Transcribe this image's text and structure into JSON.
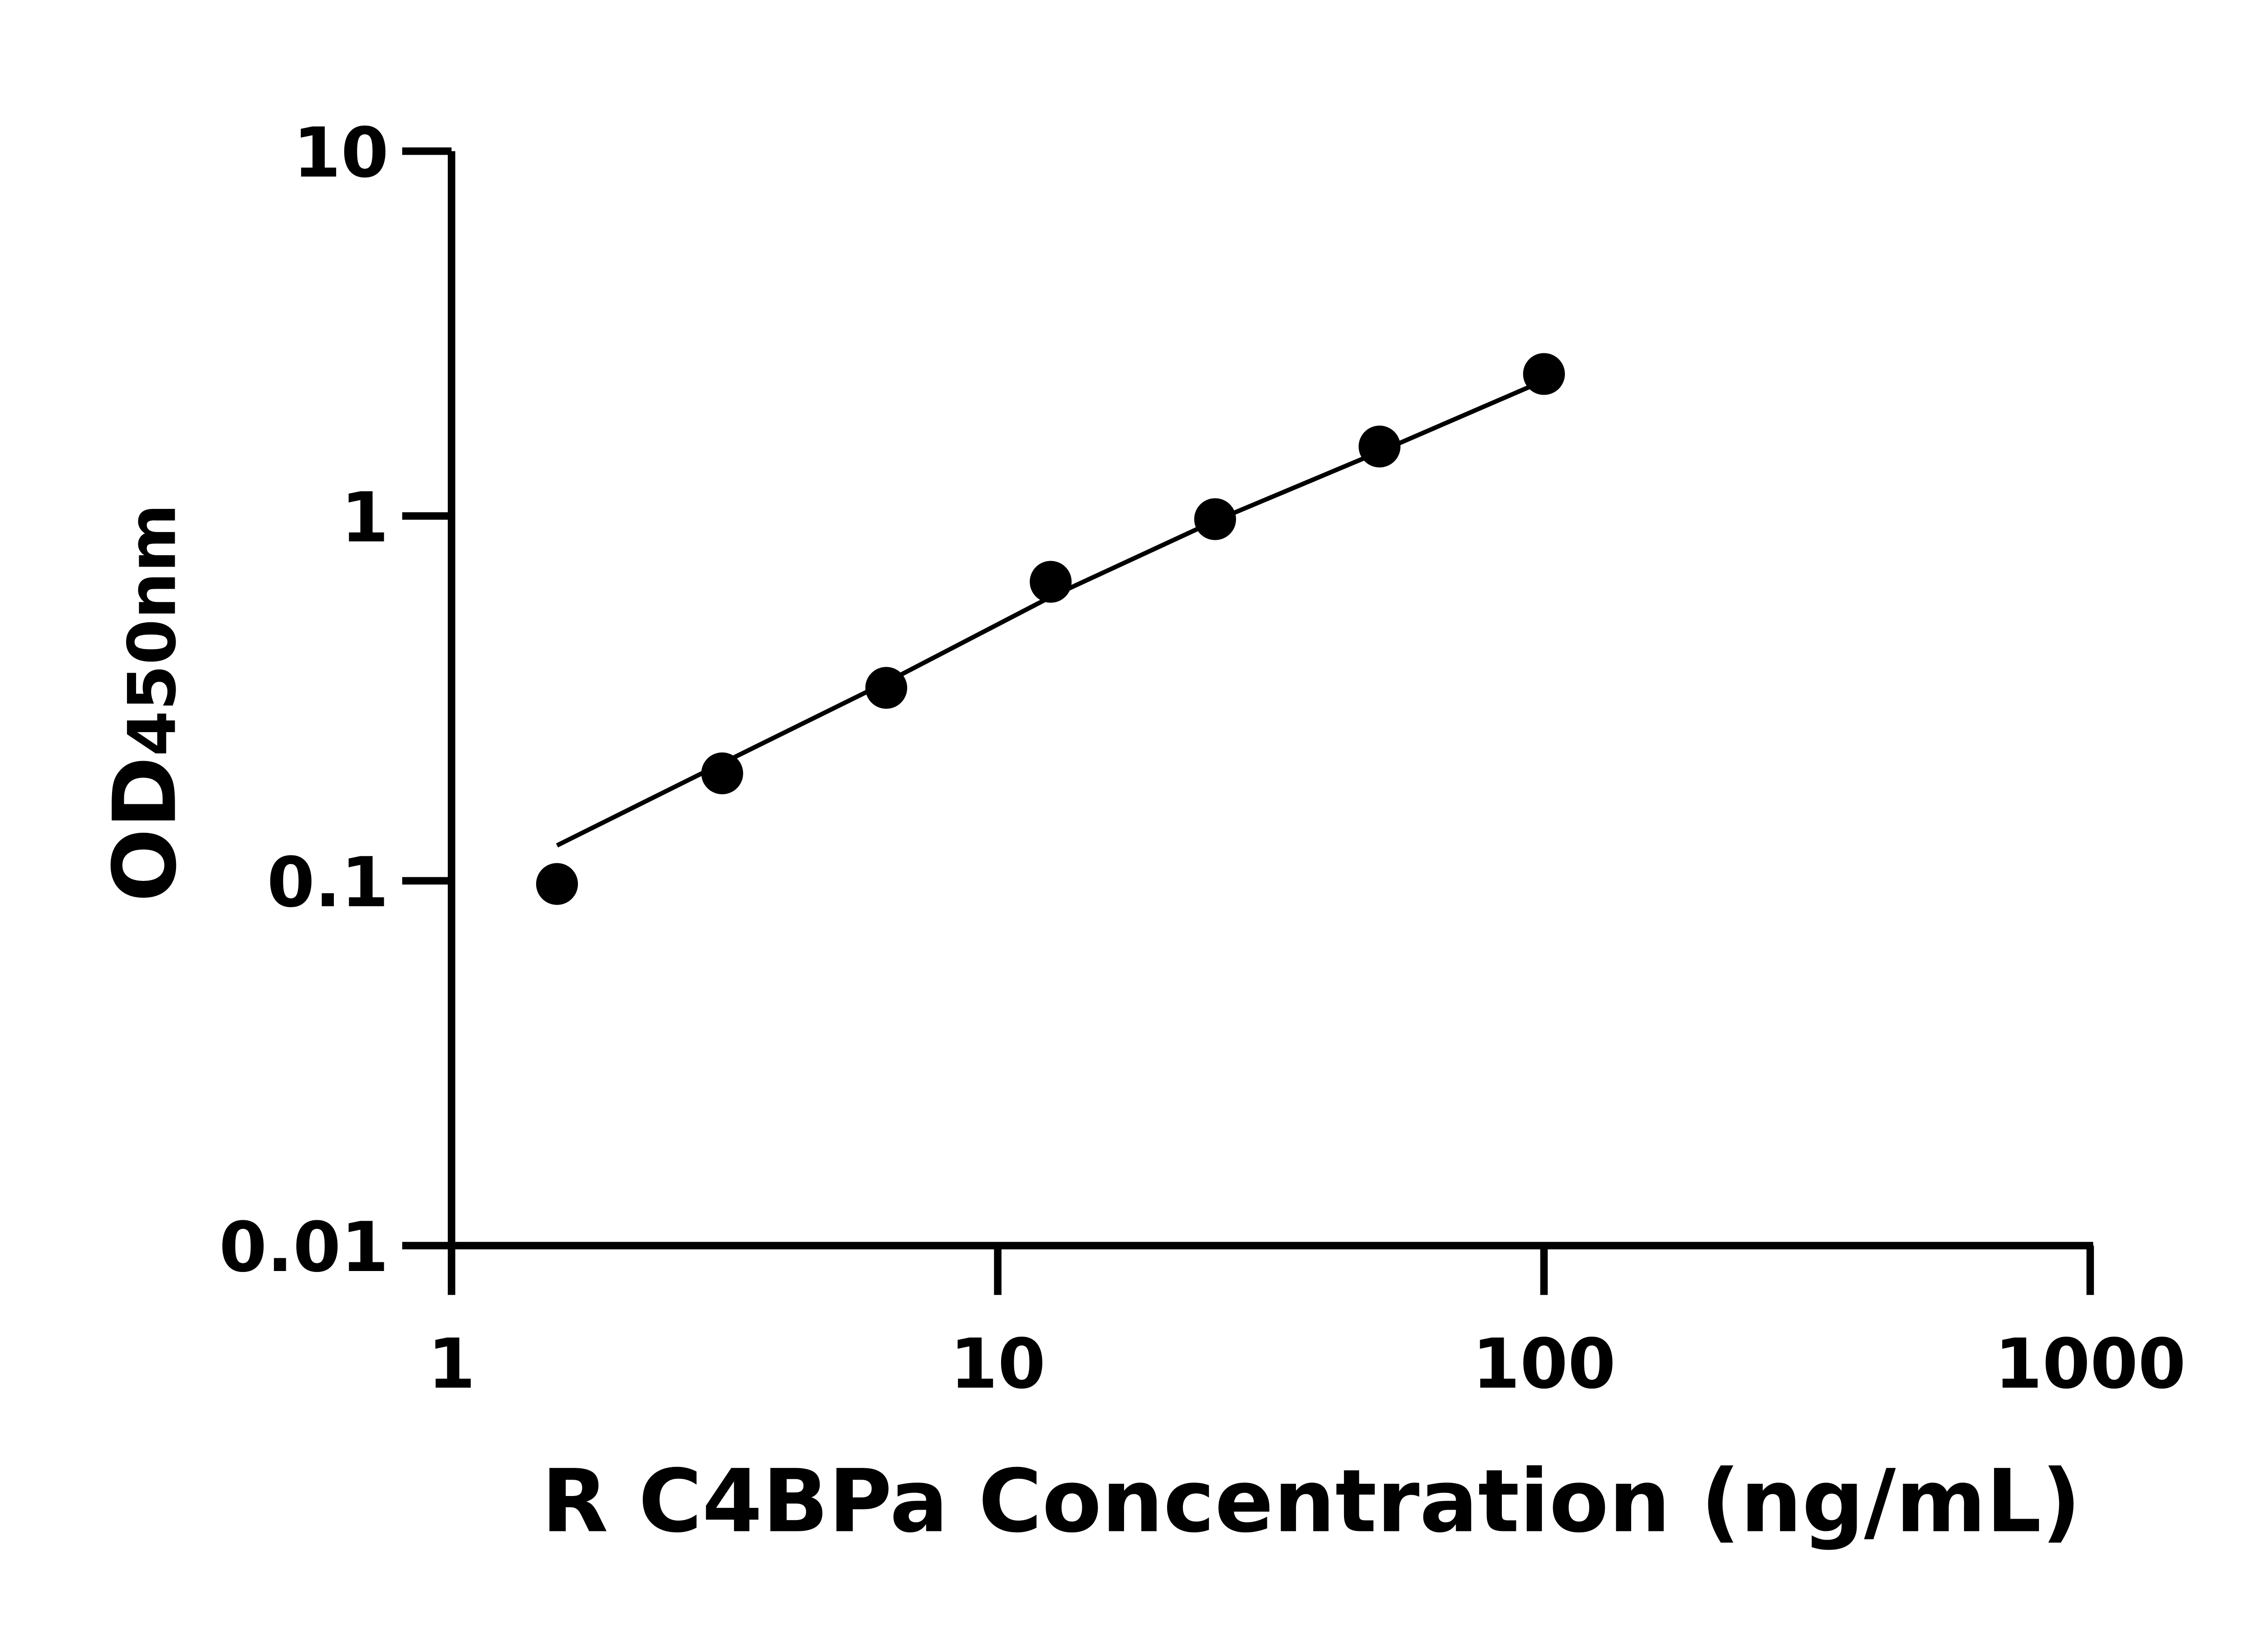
{
  "chart_data": {
    "type": "scatter",
    "title": "",
    "xlabel": "R C4BPa Concentration (ng/mL)",
    "ylabel_main": "OD",
    "ylabel_sub": "450nm",
    "xscale": "log",
    "yscale": "log",
    "xlim": [
      1,
      1000
    ],
    "ylim": [
      0.01,
      10
    ],
    "xticks": [
      "1",
      "10",
      "100",
      "1000"
    ],
    "yticks": [
      "0.01",
      "0.1",
      "1",
      "10"
    ],
    "grid": false,
    "legend": "none",
    "marker_color": "#000000",
    "points": {
      "x": [
        1.56,
        3.13,
        6.25,
        12.5,
        25,
        50,
        100
      ],
      "y": [
        0.098,
        0.197,
        0.338,
        0.66,
        0.98,
        1.55,
        2.45
      ]
    },
    "fit_curve": {
      "x": [
        1.56,
        3.13,
        6.25,
        12.5,
        25,
        50,
        100
      ],
      "y": [
        0.125,
        0.21,
        0.35,
        0.6,
        0.97,
        1.5,
        2.35
      ]
    }
  }
}
